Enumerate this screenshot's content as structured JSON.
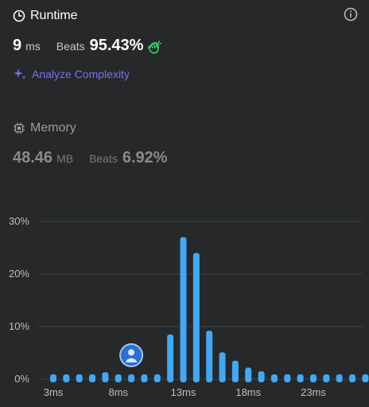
{
  "runtime": {
    "title": "Runtime",
    "value": "9",
    "unit": "ms",
    "beats_label": "Beats",
    "beats_value": "95.43%",
    "analyze_label": "Analyze Complexity"
  },
  "memory": {
    "title": "Memory",
    "value": "48.46",
    "unit": "MB",
    "beats_label": "Beats",
    "beats_value": "6.92%"
  },
  "colors": {
    "bar": "#3fa9f5",
    "accent_purple": "#7c6cf2",
    "clap_green": "#2fd36b"
  },
  "chart_data": {
    "type": "bar",
    "x": [
      3,
      4,
      5,
      6,
      7,
      8,
      9,
      10,
      11,
      12,
      13,
      14,
      15,
      16,
      17,
      18,
      19,
      20,
      21,
      22,
      23,
      24,
      25,
      26,
      27
    ],
    "values": [
      0.3,
      0.3,
      0.3,
      0.3,
      1.3,
      0.5,
      0.3,
      0.3,
      0.3,
      8.5,
      27,
      24,
      9.2,
      5.1,
      3.5,
      2.2,
      1.5,
      0.3,
      0.3,
      0.3,
      0.3,
      0.3,
      0.3,
      0.3,
      0.3
    ],
    "x_ticks": [
      "3ms",
      "8ms",
      "13ms",
      "18ms",
      "23ms"
    ],
    "x_tick_values": [
      3,
      8,
      13,
      18,
      23
    ],
    "y_ticks": [
      "0%",
      "10%",
      "20%",
      "30%"
    ],
    "y_tick_values": [
      0,
      10,
      20,
      30
    ],
    "ylim": [
      0,
      30
    ],
    "grid": true,
    "marker_x": 9
  }
}
